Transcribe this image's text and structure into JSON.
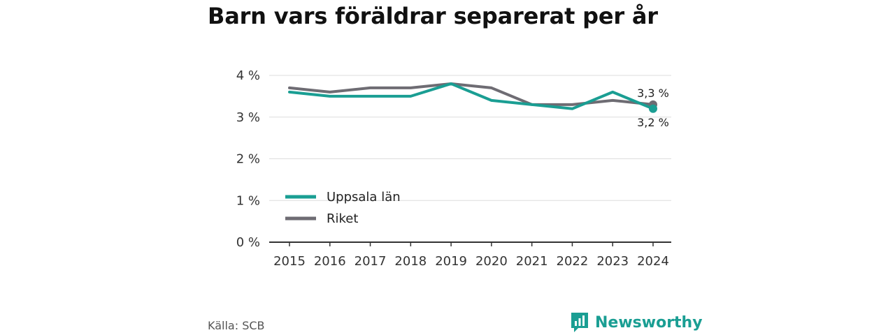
{
  "page_title": "Barn vars föräldrar separerat per år",
  "source": "Källa: SCB",
  "brand": {
    "name": "Newsworthy",
    "icon": "newsworthy-logo-icon",
    "color": "#1a9e93"
  },
  "chart_data": {
    "type": "line",
    "title": "Barn vars föräldrar separerat per år",
    "xlabel": "",
    "ylabel": "",
    "x": [
      "2015",
      "2016",
      "2017",
      "2018",
      "2019",
      "2020",
      "2021",
      "2022",
      "2023",
      "2024"
    ],
    "ylim": [
      0,
      4
    ],
    "yticks": [
      {
        "value": 0,
        "label": "0 %"
      },
      {
        "value": 1,
        "label": "1 %"
      },
      {
        "value": 2,
        "label": "2 %"
      },
      {
        "value": 3,
        "label": "3 %"
      },
      {
        "value": 4,
        "label": "4 %"
      }
    ],
    "grid": true,
    "legend_position": "bottom-left",
    "series": [
      {
        "name": "Uppsala län",
        "color": "#1a9e93",
        "values": [
          3.6,
          3.5,
          3.5,
          3.5,
          3.8,
          3.4,
          3.3,
          3.2,
          3.6,
          3.2
        ],
        "end_label": "3,2 %"
      },
      {
        "name": "Riket",
        "color": "#6e6c73",
        "values": [
          3.7,
          3.6,
          3.7,
          3.7,
          3.8,
          3.7,
          3.3,
          3.3,
          3.4,
          3.3
        ],
        "end_label": "3,3 %"
      }
    ]
  }
}
